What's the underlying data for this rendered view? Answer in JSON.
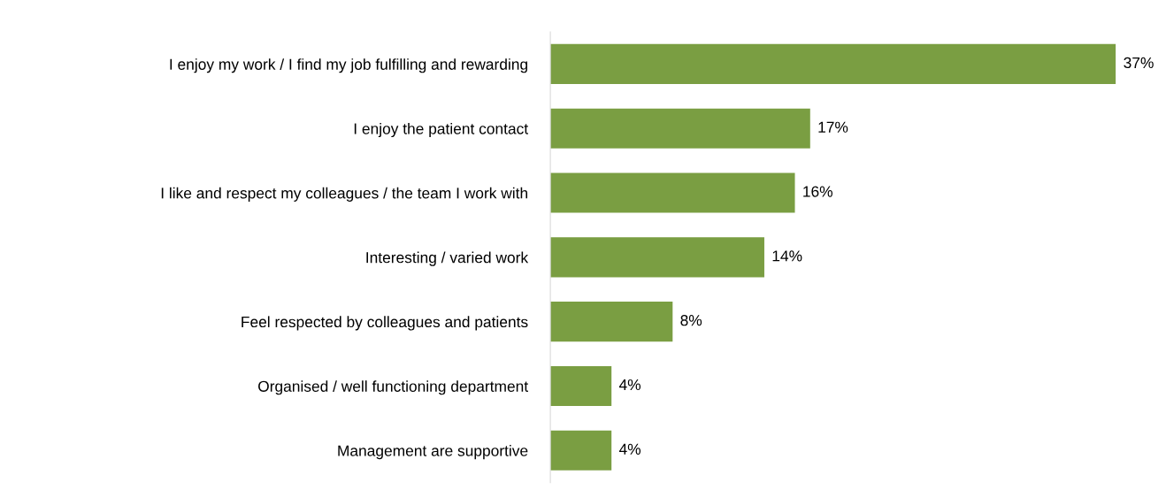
{
  "chart_data": {
    "type": "bar",
    "orientation": "horizontal",
    "categories": [
      "I enjoy my work / I find my job fulfilling and rewarding",
      "I enjoy the patient contact",
      "I like and respect my colleagues / the team I work with",
      "Interesting / varied work",
      "Feel respected by colleagues and patients",
      "Organised / well functioning department",
      "Management are supportive"
    ],
    "values": [
      37,
      17,
      16,
      14,
      8,
      4,
      4
    ],
    "value_labels": [
      "37%",
      "17%",
      "16%",
      "14%",
      "8%",
      "4%",
      "4%"
    ],
    "color": "#7a9e42",
    "tick_labels": "y",
    "grid": false,
    "legend": false
  }
}
